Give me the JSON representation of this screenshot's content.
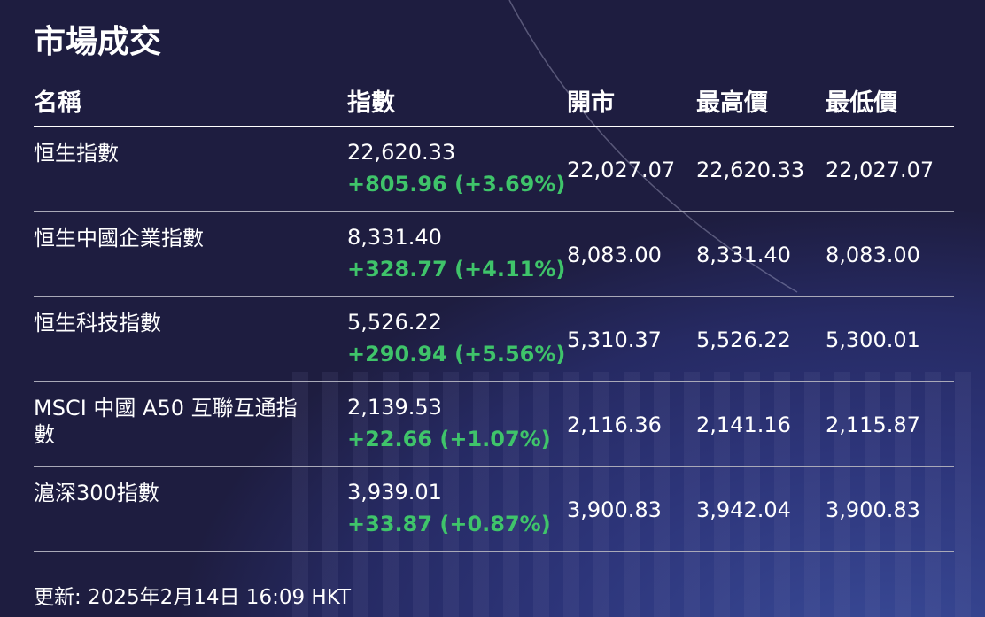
{
  "title": "市場成交",
  "headers": [
    "名稱",
    "指數",
    "開市",
    "最高價",
    "最低價"
  ],
  "rows": [
    {
      "name": "恒生指數",
      "index": "22,620.33",
      "change": "+805.96 (+3.69%)",
      "open": "22,027.07",
      "high": "22,620.33",
      "low": "22,027.07"
    },
    {
      "name": "恒生中國企業指數",
      "index": "8,331.40",
      "change": "+328.77 (+4.11%)",
      "open": "8,083.00",
      "high": "8,331.40",
      "low": "8,083.00"
    },
    {
      "name": "恒生科技指數",
      "index": "5,526.22",
      "change": "+290.94 (+5.56%)",
      "open": "5,310.37",
      "high": "5,526.22",
      "low": "5,300.01"
    },
    {
      "name": "MSCI 中國 A50 互聯互通指數",
      "index": "2,139.53",
      "change": "+22.66 (+1.07%)",
      "open": "2,116.36",
      "high": "2,141.16",
      "low": "2,115.87"
    },
    {
      "name": "滬深300指數",
      "index": "3,939.01",
      "change": "+33.87 (+0.87%)",
      "open": "3,900.83",
      "high": "3,942.04",
      "low": "3,900.83"
    }
  ],
  "footer": "更新: 2025年2月14日 16:09 HKT",
  "colors": {
    "background": "#1e1d40",
    "positive": "#3fc46a"
  }
}
